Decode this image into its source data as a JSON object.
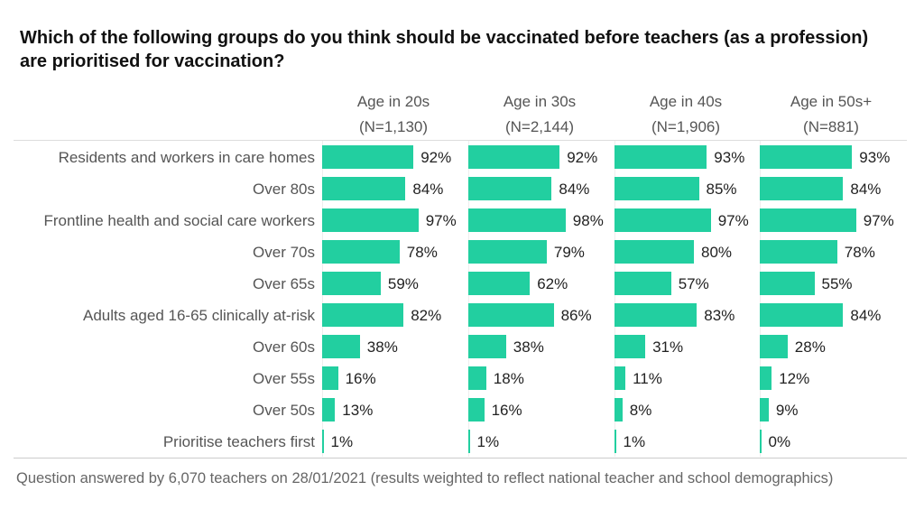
{
  "chart_data": {
    "type": "bar",
    "orientation": "horizontal",
    "title": "Which of the following groups do you think should be vaccinated before teachers (as a profession) are prioritised for vaccination?",
    "categories": [
      "Residents and workers in care homes",
      "Over 80s",
      "Frontline health and social care workers",
      "Over 70s",
      "Over 65s",
      "Adults aged 16-65 clinically at-risk",
      "Over 60s",
      "Over 55s",
      "Over 50s",
      "Prioritise teachers first"
    ],
    "series": [
      {
        "name": "Age in 20s",
        "n": "(N=1,130)",
        "values": [
          92,
          84,
          97,
          78,
          59,
          82,
          38,
          16,
          13,
          1
        ]
      },
      {
        "name": "Age in 30s",
        "n": "(N=2,144)",
        "values": [
          92,
          84,
          98,
          79,
          62,
          86,
          38,
          18,
          16,
          1
        ]
      },
      {
        "name": "Age in 40s",
        "n": "(N=1,906)",
        "values": [
          93,
          85,
          97,
          80,
          57,
          83,
          31,
          11,
          8,
          1
        ]
      },
      {
        "name": "Age in 50s+",
        "n": "(N=881)",
        "values": [
          93,
          84,
          97,
          78,
          55,
          84,
          28,
          12,
          9,
          0
        ]
      }
    ],
    "unit": "%",
    "xlim": [
      0,
      100
    ],
    "bar_color": "#22cfa0",
    "footnote": "Question answered by 6,070 teachers on 28/01/2021 (results weighted to reflect national teacher and school demographics)"
  }
}
